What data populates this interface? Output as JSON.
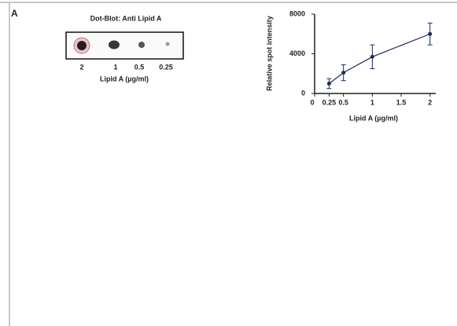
{
  "panel_label": "A",
  "dot_blot": {
    "title": "Dot-Blot: Anti Lipid A",
    "lanes": [
      "2",
      "1",
      "0.5",
      "0.25"
    ],
    "xlabel": "Lipid A (µg/ml)"
  },
  "chart_data": {
    "type": "line",
    "xlabel": "Lipid A (µg/ml)",
    "ylabel": "Relative spot intensity",
    "series": [
      {
        "name": "Relative spot intensity",
        "color": "#1c2b5c",
        "x": [
          0.25,
          0.5,
          1,
          2
        ],
        "values": [
          1000,
          2100,
          3700,
          6000
        ],
        "errors": [
          500,
          800,
          1200,
          1100
        ]
      }
    ],
    "xlim": [
      0,
      2.1
    ],
    "xticks": [
      0,
      0.25,
      0.5,
      1,
      1.5,
      2
    ],
    "ylim": [
      0,
      8000
    ],
    "yticks": [
      0,
      4000,
      8000
    ]
  }
}
